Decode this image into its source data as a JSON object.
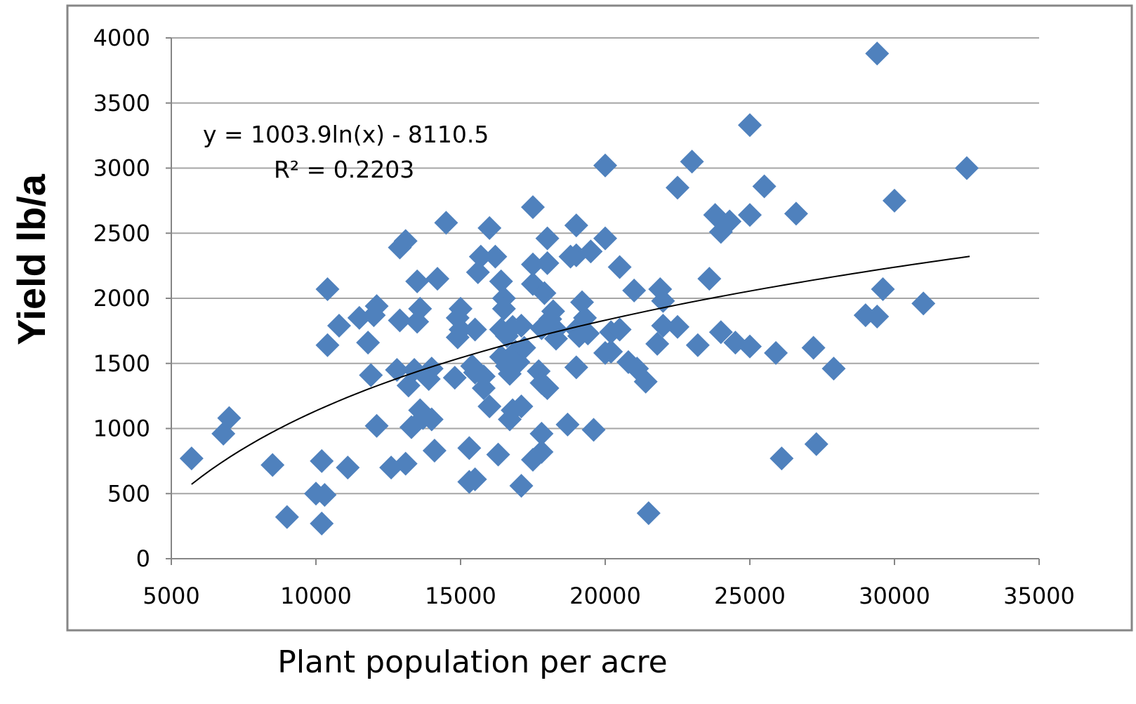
{
  "chart_data": {
    "type": "scatter",
    "title": "",
    "xlabel": "Plant population per acre",
    "ylabel": "Yield lb/a",
    "xlim": [
      5000,
      35000
    ],
    "ylim": [
      0,
      4000
    ],
    "xticks": [
      5000,
      10000,
      15000,
      20000,
      25000,
      30000,
      35000
    ],
    "yticks": [
      0,
      500,
      1000,
      1500,
      2000,
      2500,
      3000,
      3500,
      4000
    ],
    "grid": "horizontal",
    "legend": "none",
    "colors": {
      "marker": "#4F81BD",
      "trendline": "#000000",
      "grid": "#A6A6A6",
      "frame": "#868686"
    },
    "trendline": {
      "type": "logarithmic",
      "a": 1003.9,
      "b": -8110.5,
      "x_range": [
        5700,
        32600
      ],
      "equation_label": "y = 1003.9ln(x) - 8110.5",
      "r2_label": "R² = 0.2203"
    },
    "points": [
      [
        5700,
        770
      ],
      [
        6800,
        960
      ],
      [
        7000,
        1080
      ],
      [
        8500,
        720
      ],
      [
        9000,
        320
      ],
      [
        10000,
        500
      ],
      [
        10200,
        270
      ],
      [
        10200,
        750
      ],
      [
        10300,
        490
      ],
      [
        10400,
        1640
      ],
      [
        10400,
        2070
      ],
      [
        10800,
        1790
      ],
      [
        11100,
        700
      ],
      [
        11500,
        1850
      ],
      [
        11800,
        1660
      ],
      [
        11900,
        1410
      ],
      [
        12000,
        1870
      ],
      [
        12100,
        1940
      ],
      [
        12100,
        1020
      ],
      [
        12600,
        700
      ],
      [
        12800,
        1450
      ],
      [
        12900,
        2390
      ],
      [
        12900,
        1830
      ],
      [
        13100,
        730
      ],
      [
        13100,
        2440
      ],
      [
        13200,
        1330
      ],
      [
        13300,
        1010
      ],
      [
        13400,
        1450
      ],
      [
        13500,
        1820
      ],
      [
        13500,
        2130
      ],
      [
        13600,
        1920
      ],
      [
        13600,
        1140
      ],
      [
        13700,
        1080
      ],
      [
        13900,
        1380
      ],
      [
        14000,
        1460
      ],
      [
        14000,
        1070
      ],
      [
        14100,
        830
      ],
      [
        14200,
        2150
      ],
      [
        14500,
        2580
      ],
      [
        14800,
        1390
      ],
      [
        14900,
        1700
      ],
      [
        14900,
        1850
      ],
      [
        15000,
        1920
      ],
      [
        15000,
        1760
      ],
      [
        15300,
        590
      ],
      [
        15300,
        850
      ],
      [
        15400,
        1480
      ],
      [
        15500,
        610
      ],
      [
        15500,
        1430
      ],
      [
        15500,
        1760
      ],
      [
        15600,
        2200
      ],
      [
        15700,
        2320
      ],
      [
        15800,
        1310
      ],
      [
        15800,
        1400
      ],
      [
        16000,
        2540
      ],
      [
        16000,
        1170
      ],
      [
        16200,
        2320
      ],
      [
        16300,
        800
      ],
      [
        16400,
        1550
      ],
      [
        16400,
        1760
      ],
      [
        16400,
        2130
      ],
      [
        16500,
        2000
      ],
      [
        16500,
        1920
      ],
      [
        16600,
        1710
      ],
      [
        16600,
        1480
      ],
      [
        16700,
        1070
      ],
      [
        16700,
        1420
      ],
      [
        16800,
        1780
      ],
      [
        16800,
        1140
      ],
      [
        16900,
        1590
      ],
      [
        17000,
        1510
      ],
      [
        17100,
        560
      ],
      [
        17100,
        1170
      ],
      [
        17100,
        1790
      ],
      [
        17200,
        1620
      ],
      [
        17500,
        2260
      ],
      [
        17500,
        2110
      ],
      [
        17500,
        760
      ],
      [
        17500,
        2700
      ],
      [
        17700,
        1440
      ],
      [
        17800,
        960
      ],
      [
        17800,
        820
      ],
      [
        17800,
        1350
      ],
      [
        17800,
        1770
      ],
      [
        17900,
        2040
      ],
      [
        17900,
        1330
      ],
      [
        18000,
        2460
      ],
      [
        18000,
        1310
      ],
      [
        18000,
        2270
      ],
      [
        18100,
        1840
      ],
      [
        18200,
        1900
      ],
      [
        18300,
        1760
      ],
      [
        18300,
        1690
      ],
      [
        18700,
        1030
      ],
      [
        18800,
        2320
      ],
      [
        19000,
        1470
      ],
      [
        19000,
        2330
      ],
      [
        19000,
        1760
      ],
      [
        19000,
        2560
      ],
      [
        19100,
        1710
      ],
      [
        19200,
        1970
      ],
      [
        19300,
        1850
      ],
      [
        19400,
        1730
      ],
      [
        19500,
        2360
      ],
      [
        19600,
        990
      ],
      [
        20000,
        3020
      ],
      [
        20000,
        2460
      ],
      [
        20000,
        1580
      ],
      [
        20200,
        1740
      ],
      [
        20200,
        1590
      ],
      [
        20500,
        1760
      ],
      [
        20500,
        2240
      ],
      [
        20800,
        1510
      ],
      [
        21000,
        2060
      ],
      [
        21100,
        1460
      ],
      [
        21400,
        1360
      ],
      [
        21500,
        350
      ],
      [
        21800,
        1650
      ],
      [
        21900,
        2070
      ],
      [
        22000,
        1980
      ],
      [
        22000,
        1790
      ],
      [
        22500,
        1780
      ],
      [
        22500,
        2850
      ],
      [
        23000,
        3050
      ],
      [
        23200,
        1640
      ],
      [
        23600,
        2150
      ],
      [
        23800,
        2640
      ],
      [
        24000,
        2510
      ],
      [
        24000,
        1740
      ],
      [
        24300,
        2590
      ],
      [
        24500,
        1660
      ],
      [
        25000,
        2640
      ],
      [
        25000,
        1630
      ],
      [
        25000,
        3330
      ],
      [
        25500,
        2860
      ],
      [
        25900,
        1580
      ],
      [
        26100,
        770
      ],
      [
        26600,
        2650
      ],
      [
        27200,
        1620
      ],
      [
        27300,
        880
      ],
      [
        27900,
        1460
      ],
      [
        29000,
        1870
      ],
      [
        29400,
        1860
      ],
      [
        29400,
        3880
      ],
      [
        29600,
        2070
      ],
      [
        30000,
        2750
      ],
      [
        31000,
        1960
      ],
      [
        32500,
        3000
      ]
    ]
  }
}
